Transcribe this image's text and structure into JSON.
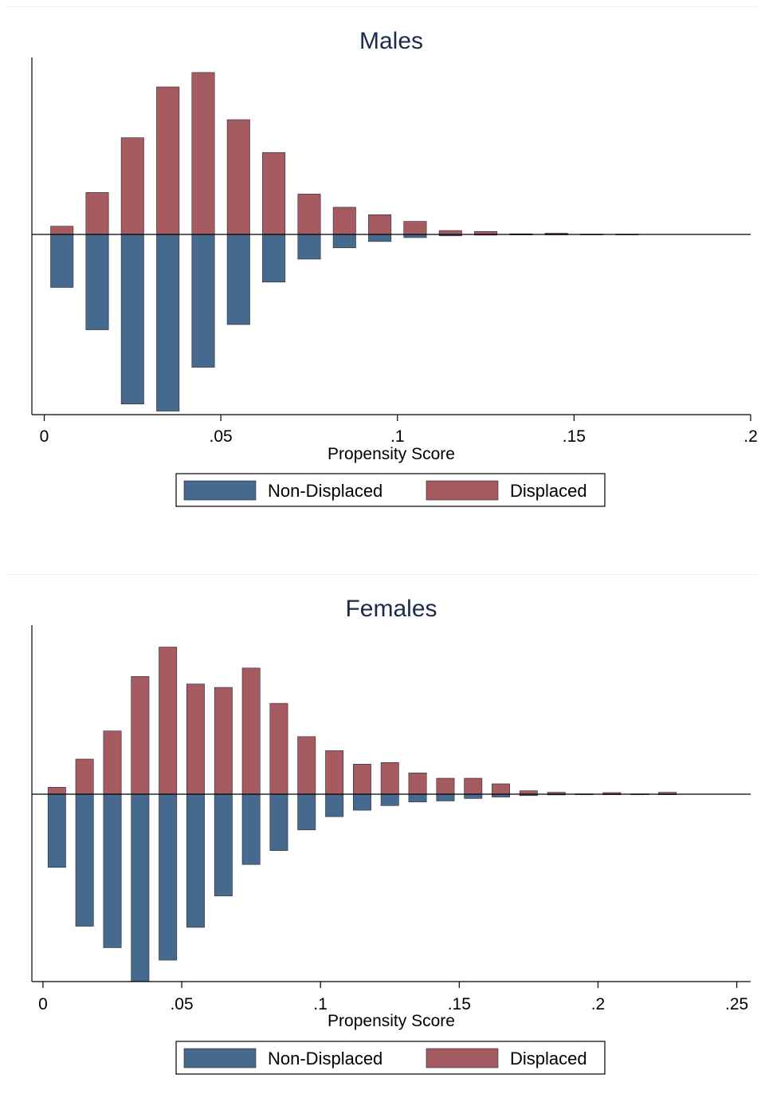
{
  "colors": {
    "non_displaced": "#466a8e",
    "displaced": "#a55b60",
    "bar_outline": "#2a2a3a",
    "axis": "#000000",
    "title": "#1a2b4c"
  },
  "chart_data": [
    {
      "type": "bar",
      "orientation": "mirrored-histogram",
      "title": "Males",
      "xlabel": "Propensity Score",
      "ylabel": "",
      "xlim": [
        -0.0035,
        0.2
      ],
      "ylim": [
        -0.51,
        0.54
      ],
      "xticks": [
        0,
        0.05,
        0.1,
        0.15,
        0.2
      ],
      "xtick_labels": [
        "0",
        ".05",
        ".1",
        ".15",
        ".2"
      ],
      "bin_width": 0.01,
      "bin_centers": [
        0.005,
        0.015,
        0.025,
        0.035,
        0.045,
        0.055,
        0.065,
        0.075,
        0.085,
        0.095,
        0.105,
        0.115,
        0.125,
        0.135,
        0.145,
        0.155,
        0.165
      ],
      "legend_position": "bottom",
      "series": [
        {
          "name": "Non-Displaced",
          "direction": "down",
          "values": [
            0.15,
            0.27,
            0.48,
            0.5,
            0.376,
            0.255,
            0.135,
            0.07,
            0.038,
            0.02,
            0.009,
            0.004,
            0.002,
            0.001,
            0.0005,
            0.0003,
            0.0002
          ]
        },
        {
          "name": "Displaced",
          "direction": "up",
          "values": [
            0.025,
            0.128,
            0.295,
            0.45,
            0.494,
            0.35,
            0.25,
            0.123,
            0.083,
            0.06,
            0.04,
            0.012,
            0.009,
            0.002,
            0.004,
            0.001,
            0.001
          ]
        }
      ]
    },
    {
      "type": "bar",
      "orientation": "mirrored-histogram",
      "title": "Females",
      "xlabel": "Propensity Score",
      "ylabel": "",
      "xlim": [
        -0.004,
        0.255
      ],
      "ylim": [
        -0.525,
        0.54
      ],
      "xticks": [
        0,
        0.05,
        0.1,
        0.15,
        0.2,
        0.25
      ],
      "xtick_labels": [
        "0",
        ".05",
        ".1",
        ".15",
        ".2",
        ".25"
      ],
      "bin_width": 0.01,
      "bin_centers": [
        0.005,
        0.015,
        0.025,
        0.035,
        0.045,
        0.055,
        0.065,
        0.075,
        0.085,
        0.095,
        0.105,
        0.115,
        0.125,
        0.135,
        0.145,
        0.155,
        0.165,
        0.175,
        0.185,
        0.195,
        0.205,
        0.215,
        0.225
      ],
      "legend_position": "bottom",
      "series": [
        {
          "name": "Non-Displaced",
          "direction": "down",
          "values": [
            0.205,
            0.37,
            0.43,
            0.525,
            0.465,
            0.373,
            0.285,
            0.197,
            0.158,
            0.1,
            0.063,
            0.045,
            0.032,
            0.022,
            0.019,
            0.012,
            0.008,
            0.004,
            0.002,
            0.001,
            0.001,
            0.0005,
            0.0005
          ]
        },
        {
          "name": "Displaced",
          "direction": "up",
          "values": [
            0.022,
            0.112,
            0.202,
            0.376,
            0.47,
            0.352,
            0.341,
            0.403,
            0.29,
            0.184,
            0.139,
            0.096,
            0.101,
            0.068,
            0.051,
            0.051,
            0.033,
            0.011,
            0.006,
            0.001,
            0.005,
            0.001,
            0.006
          ]
        }
      ]
    }
  ]
}
